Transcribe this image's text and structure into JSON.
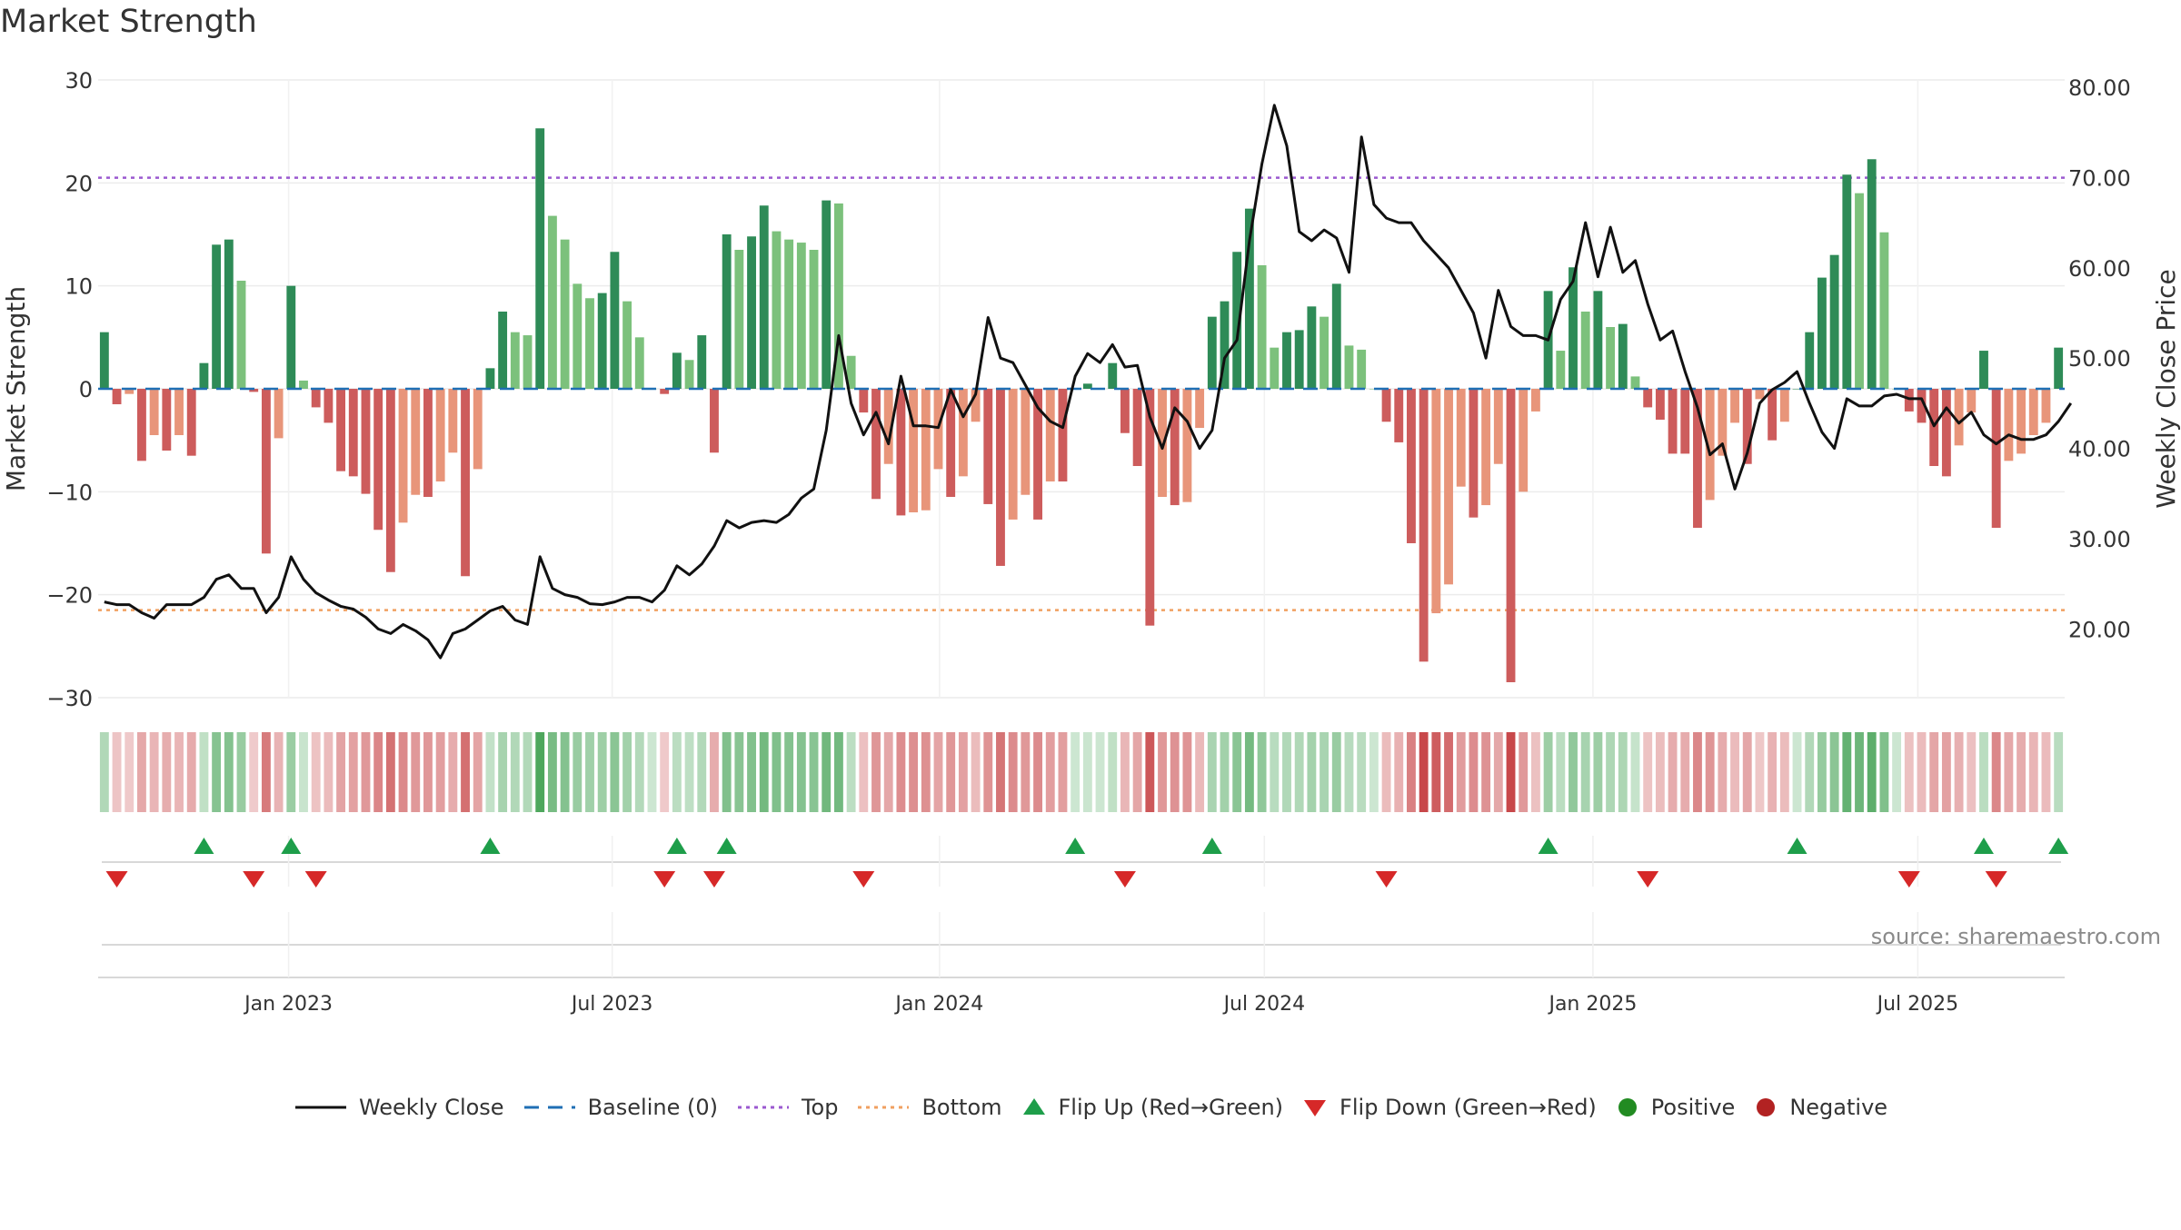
{
  "chart_data": {
    "type": "bar",
    "title": "Market Strength",
    "ylabel": "Market Strength",
    "y2label": "Weekly Close Price",
    "ylim": [
      -30,
      30
    ],
    "y2lim": [
      10,
      80
    ],
    "yticks": [
      "−30",
      "−20",
      "−10",
      "0",
      "10",
      "20",
      "30"
    ],
    "y2ticks": [
      "20.00",
      "30.00",
      "40.00",
      "50.00",
      "60.00",
      "70.00",
      "80.00"
    ],
    "xticks": [
      {
        "label": "Jan 2023",
        "week": 15.3
      },
      {
        "label": "Jul 2023",
        "week": 41.3
      },
      {
        "label": "Jan 2024",
        "week": 67.6
      },
      {
        "label": "Jul 2024",
        "week": 93.7
      },
      {
        "label": "Jan 2025",
        "week": 120.1
      },
      {
        "label": "Jul 2025",
        "week": 146.2
      }
    ],
    "top_level": 20.5,
    "bottom_level": -21.5,
    "source": "source: sharemaestro.com",
    "strength": [
      5.5,
      -1.5,
      -0.5,
      -7,
      -4.5,
      -6,
      -4.5,
      -6.5,
      2.5,
      14,
      14.5,
      10.5,
      -0.3,
      -16,
      -4.8,
      10,
      0.8,
      -1.8,
      -3.3,
      -8,
      -8.5,
      -10.2,
      -13.7,
      -17.8,
      -13,
      -10.3,
      -10.5,
      -9,
      -6.2,
      -18.2,
      -7.8,
      2,
      7.5,
      5.5,
      5.2,
      25.3,
      16.8,
      14.5,
      10.2,
      8.8,
      9.3,
      13.3,
      8.5,
      5,
      0,
      -0.5,
      3.5,
      2.8,
      5.2,
      -6.2,
      15,
      13.5,
      14.8,
      17.8,
      15.3,
      14.5,
      14.2,
      13.5,
      18.3,
      18,
      3.2,
      -2.3,
      -10.7,
      -7.3,
      -12.3,
      -12,
      -11.8,
      -7.8,
      -10.5,
      -8.5,
      -3.2,
      -11.2,
      -17.2,
      -12.7,
      -10.3,
      -12.7,
      -9,
      -9,
      0,
      0.5,
      0,
      2.5,
      -4.3,
      -7.5,
      -23,
      -10.5,
      -11.3,
      -11,
      -3.8,
      7,
      8.5,
      13.3,
      17.5,
      12,
      4,
      5.5,
      5.7,
      8,
      7,
      10.2,
      4.2,
      3.8,
      0,
      -3.2,
      -5.2,
      -15,
      -26.5,
      -21.8,
      -19,
      -9.5,
      -12.5,
      -11.3,
      -7.3,
      -28.5,
      -10,
      -2.2,
      9.5,
      3.7,
      11.8,
      7.5,
      9.5,
      6,
      6.3,
      1.2,
      -1.8,
      -3,
      -6.3,
      -6.3,
      -13.5,
      -10.8,
      -6.5,
      -3.3,
      -7.3,
      -1,
      -5,
      -3.2,
      0,
      5.5,
      10.8,
      13,
      20.8,
      19,
      22.3,
      15.2,
      0,
      -2.2,
      -3.3,
      -7.5,
      -8.5,
      -5.5,
      -2.3,
      3.7,
      -13.5,
      -7,
      -6.3,
      -4.5,
      -3.3,
      4
    ],
    "close": [
      23,
      22.7,
      22.7,
      21.8,
      21.2,
      22.7,
      22.7,
      22.7,
      23.5,
      25.5,
      26,
      24.5,
      24.5,
      21.8,
      23.5,
      28,
      25.5,
      24,
      23.2,
      22.5,
      22.2,
      21.3,
      20,
      19.5,
      20.5,
      19.8,
      18.8,
      16.8,
      19.5,
      20,
      21,
      22,
      22.5,
      21,
      20.5,
      28,
      24.5,
      23.8,
      23.5,
      22.8,
      22.7,
      23,
      23.5,
      23.5,
      23,
      24.3,
      27,
      26,
      27.2,
      29.2,
      32,
      31.2,
      31.8,
      32,
      31.8,
      32.7,
      34.5,
      35.5,
      42,
      52.5,
      45,
      41.5,
      44,
      40.5,
      48,
      42.5,
      42.5,
      42.3,
      46.5,
      43.5,
      46,
      54.5,
      50,
      49.5,
      47,
      44.5,
      43,
      42.3,
      48,
      50.5,
      49.5,
      51.5,
      49,
      49.2,
      43.5,
      40,
      44.5,
      43,
      40,
      42,
      50,
      52,
      63,
      71.5,
      78,
      73.5,
      64,
      63,
      64.2,
      63.3,
      59.5,
      74.5,
      67,
      65.5,
      65,
      65,
      63,
      61.5,
      60,
      57.5,
      55,
      50,
      57.5,
      53.5,
      52.5,
      52.5,
      52,
      56.5,
      58.5,
      65,
      59,
      64.5,
      59.5,
      60.8,
      56,
      52,
      53,
      48.5,
      44.5,
      39.3,
      40.5,
      35.5,
      39.5,
      45,
      46.5,
      47.3,
      48.5,
      45,
      41.8,
      40,
      45.5,
      44.7,
      44.7,
      45.8,
      46,
      45.5,
      45.5,
      42.5,
      44.5,
      42.8,
      44,
      41.5,
      40.5,
      41.5,
      41,
      41,
      41.5,
      43,
      45
    ]
  },
  "legend": {
    "weekly_close": "Weekly Close",
    "baseline": "Baseline (0)",
    "top": "Top",
    "bottom": "Bottom",
    "flip_up": "Flip Up (Red→Green)",
    "flip_down": "Flip Down (Green→Red)",
    "positive": "Positive",
    "negative": "Negative"
  },
  "colors": {
    "pos_strong": "#2e8b57",
    "pos_light": "#7cc17c",
    "neg_strong": "#cd5c5c",
    "neg_light": "#e8957a",
    "close_line": "#111111",
    "baseline": "#1f6fb4",
    "top_line": "#9b59d0",
    "bottom_line": "#f0a060",
    "flip_up": "#1e9e4a",
    "flip_down": "#d62828",
    "positive_dot": "#228b22",
    "negative_dot": "#b22222"
  }
}
